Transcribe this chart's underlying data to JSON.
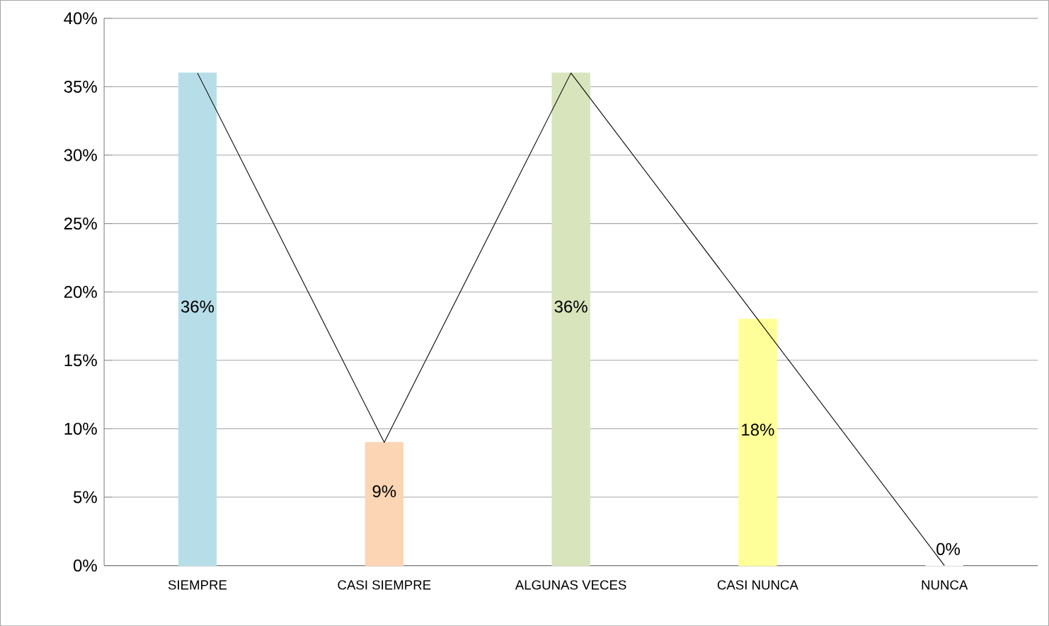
{
  "chart_data": {
    "type": "bar",
    "categories": [
      "SIEMPRE",
      "CASI SIEMPRE",
      "ALGUNAS VECES",
      "CASI NUNCA",
      "NUNCA"
    ],
    "series": [
      {
        "values": [
          36,
          9,
          36,
          18,
          0
        ],
        "colors": [
          "#b7dee8",
          "#fcd5b4",
          "#d8e4bc",
          "#ffff99",
          "#ffffff"
        ],
        "value_labels": [
          "36%",
          "9%",
          "36%",
          "18%",
          "0%"
        ]
      },
      {
        "type": "line",
        "color": "#000000",
        "values": [
          36,
          9,
          36,
          18,
          0
        ]
      }
    ],
    "ylim": [
      0,
      40
    ],
    "yticks": [
      {
        "value": 0,
        "label": "0%"
      },
      {
        "value": 5,
        "label": "5%"
      },
      {
        "value": 10,
        "label": "10%"
      },
      {
        "value": 15,
        "label": "15%"
      },
      {
        "value": 20,
        "label": "20%"
      },
      {
        "value": 25,
        "label": "25%"
      },
      {
        "value": 30,
        "label": "30%"
      },
      {
        "value": 35,
        "label": "35%"
      },
      {
        "value": 40,
        "label": "40%"
      }
    ],
    "grid": "y",
    "marker": "none",
    "line_style": "solid"
  }
}
